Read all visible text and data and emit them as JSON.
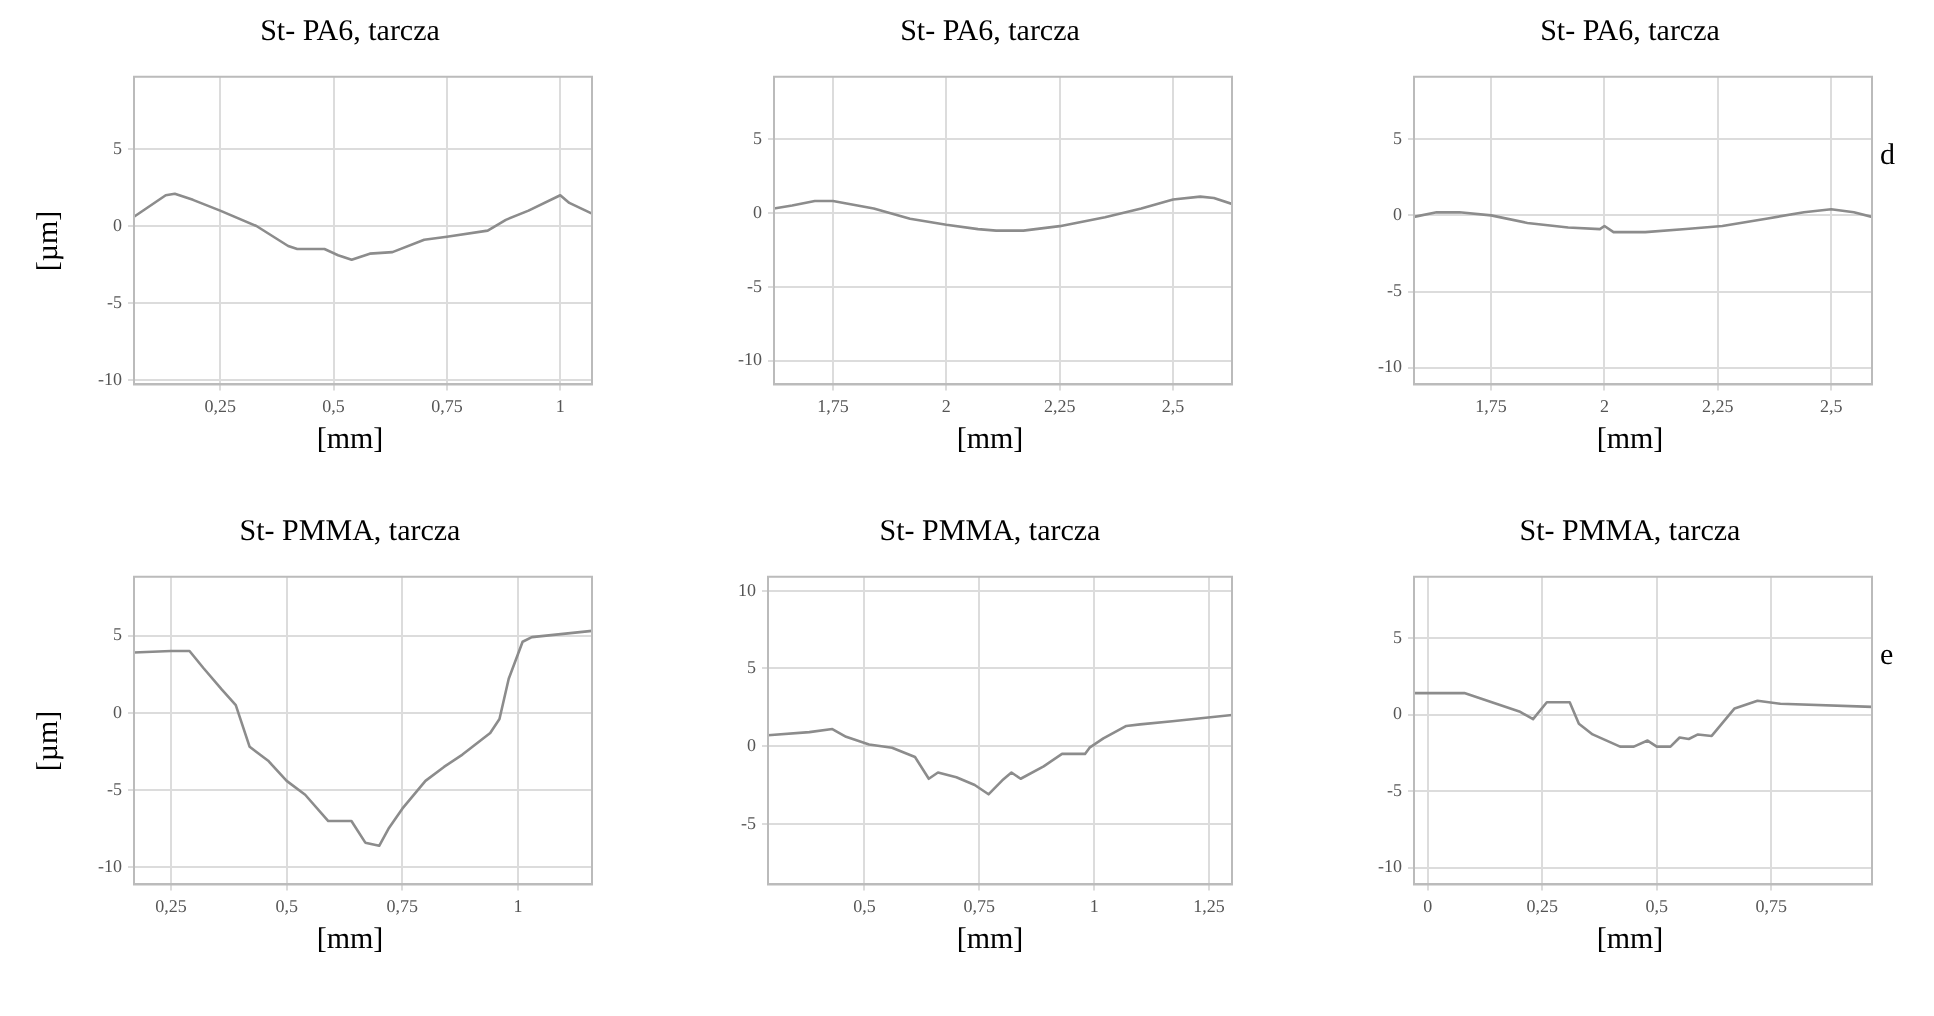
{
  "chart_data": [
    {
      "type": "line",
      "title": "St- PA6, tarcza",
      "xlabel": "[mm]",
      "ylabel": "[µm]",
      "grid": true,
      "legend": false,
      "marker": "none",
      "xlim": [
        0.06,
        1.07
      ],
      "xticks": [
        {
          "value": 0.25,
          "label": "0,25"
        },
        {
          "value": 0.5,
          "label": "0,5"
        },
        {
          "value": 0.75,
          "label": "0,75"
        },
        1
      ],
      "ylim": [
        -10.3,
        9.7
      ],
      "yticks": [
        -10,
        -5,
        0,
        5
      ],
      "series": [
        {
          "color": "#8c8c8c",
          "x": [
            0.06,
            0.13,
            0.15,
            0.19,
            0.25,
            0.33,
            0.4,
            0.42,
            0.48,
            0.51,
            0.54,
            0.58,
            0.63,
            0.7,
            0.75,
            0.84,
            0.88,
            0.93,
            1.0,
            1.02,
            1.07
          ],
          "values": [
            0.6,
            2.0,
            2.1,
            1.7,
            1.0,
            0,
            -1.3,
            -1.5,
            -1.5,
            -1.9,
            -2.2,
            -1.8,
            -1.7,
            -0.9,
            -0.7,
            -0.3,
            0.4,
            1.0,
            2.0,
            1.5,
            0.8
          ]
        }
      ]
    },
    {
      "type": "line",
      "title": "St- PA6, tarcza",
      "xlabel": "[mm]",
      "grid": true,
      "legend": false,
      "marker": "none",
      "xlim": [
        1.62,
        2.63
      ],
      "xticks": [
        {
          "value": 1.75,
          "label": "1,75"
        },
        2,
        {
          "value": 2.25,
          "label": "2,25"
        },
        {
          "value": 2.5,
          "label": "2,5"
        }
      ],
      "ylim": [
        -11.6,
        9.2
      ],
      "yticks": [
        -10,
        -5,
        0,
        5
      ],
      "series": [
        {
          "color": "#8c8c8c",
          "x": [
            1.62,
            1.66,
            1.71,
            1.75,
            1.84,
            1.92,
            2.0,
            2.07,
            2.11,
            2.17,
            2.25,
            2.35,
            2.43,
            2.5,
            2.56,
            2.59,
            2.63
          ],
          "values": [
            0.3,
            0.5,
            0.8,
            0.8,
            0.3,
            -0.4,
            -0.8,
            -1.1,
            -1.2,
            -1.2,
            -0.9,
            -0.3,
            0.3,
            0.9,
            1.1,
            1.0,
            0.6
          ]
        }
      ]
    },
    {
      "type": "line",
      "title": "St- PA6, tarcza",
      "xlabel": "[mm]",
      "annotations": [
        "d"
      ],
      "grid": true,
      "legend": false,
      "marker": "none",
      "xlim": [
        1.58,
        2.59
      ],
      "xticks": [
        {
          "value": 1.75,
          "label": "1,75"
        },
        2,
        {
          "value": 2.25,
          "label": "2,25"
        },
        {
          "value": 2.5,
          "label": "2,5"
        }
      ],
      "ylim": [
        -11.1,
        9.1
      ],
      "yticks": [
        -10,
        -5,
        0,
        5
      ],
      "series": [
        {
          "color": "#8c8c8c",
          "x": [
            1.58,
            1.63,
            1.68,
            1.75,
            1.83,
            1.92,
            1.99,
            2.0,
            2.02,
            2.09,
            2.18,
            2.26,
            2.36,
            2.44,
            2.5,
            2.55,
            2.59
          ],
          "values": [
            -0.1,
            0.2,
            0.2,
            0,
            -0.5,
            -0.8,
            -0.9,
            -0.7,
            -1.1,
            -1.1,
            -0.9,
            -0.7,
            -0.2,
            0.2,
            0.4,
            0.2,
            -0.1
          ]
        }
      ]
    },
    {
      "type": "line",
      "title": "St- PMMA, tarcza",
      "xlabel": "[mm]",
      "ylabel": "[µm]",
      "grid": true,
      "legend": false,
      "marker": "none",
      "xlim": [
        0.17,
        1.16
      ],
      "xticks": [
        {
          "value": 0.25,
          "label": "0,25"
        },
        {
          "value": 0.5,
          "label": "0,5"
        },
        {
          "value": 0.75,
          "label": "0,75"
        },
        1
      ],
      "ylim": [
        -11.1,
        8.8
      ],
      "yticks": [
        -10,
        -5,
        0,
        5
      ],
      "series": [
        {
          "color": "#8c8c8c",
          "x": [
            0.17,
            0.25,
            0.29,
            0.32,
            0.36,
            0.39,
            0.42,
            0.46,
            0.5,
            0.54,
            0.59,
            0.64,
            0.67,
            0.7,
            0.72,
            0.75,
            0.8,
            0.84,
            0.88,
            0.94,
            0.96,
            0.98,
            1.01,
            1.03,
            1.16
          ],
          "values": [
            3.9,
            4.0,
            4.0,
            2.9,
            1.5,
            0.5,
            -2.2,
            -3.1,
            -4.4,
            -5.3,
            -7.0,
            -7.0,
            -8.4,
            -8.6,
            -7.5,
            -6.2,
            -4.4,
            -3.5,
            -2.7,
            -1.3,
            -0.4,
            2.2,
            4.6,
            4.9,
            5.3
          ]
        }
      ]
    },
    {
      "type": "line",
      "title": "St- PMMA, tarcza",
      "xlabel": "[mm]",
      "grid": true,
      "legend": false,
      "marker": "none",
      "xlim": [
        0.29,
        1.3
      ],
      "xticks": [
        {
          "value": 0.5,
          "label": "0,5"
        },
        {
          "value": 0.75,
          "label": "0,75"
        },
        1,
        {
          "value": 1.25,
          "label": "1,25"
        }
      ],
      "ylim": [
        -8.9,
        10.9
      ],
      "yticks": [
        -5,
        0,
        5,
        10
      ],
      "series": [
        {
          "color": "#8c8c8c",
          "x": [
            0.29,
            0.38,
            0.43,
            0.46,
            0.51,
            0.56,
            0.61,
            0.64,
            0.66,
            0.7,
            0.74,
            0.77,
            0.8,
            0.82,
            0.84,
            0.89,
            0.93,
            0.98,
            0.99,
            1.02,
            1.07,
            1.1,
            1.17,
            1.3
          ],
          "values": [
            0.7,
            0.9,
            1.1,
            0.6,
            0.1,
            -0.1,
            -0.7,
            -2.1,
            -1.7,
            -2.0,
            -2.5,
            -3.1,
            -2.2,
            -1.7,
            -2.1,
            -1.3,
            -0.5,
            -0.5,
            -0.1,
            0.5,
            1.3,
            1.4,
            1.6,
            2.0
          ]
        }
      ]
    },
    {
      "type": "line",
      "title": "St- PMMA, tarcza",
      "xlabel": "[mm]",
      "annotations": [
        "e"
      ],
      "grid": true,
      "legend": false,
      "marker": "none",
      "xlim": [
        -0.03,
        0.97
      ],
      "xticks": [
        0,
        {
          "value": 0.25,
          "label": "0,25"
        },
        {
          "value": 0.5,
          "label": "0,5"
        },
        {
          "value": 0.75,
          "label": "0,75"
        }
      ],
      "ylim": [
        -11.1,
        9.0
      ],
      "yticks": [
        -10,
        -5,
        0,
        5
      ],
      "series": [
        {
          "color": "#8c8c8c",
          "x": [
            -0.03,
            0.08,
            0.14,
            0.2,
            0.23,
            0.26,
            0.31,
            0.33,
            0.36,
            0.42,
            0.45,
            0.48,
            0.5,
            0.53,
            0.55,
            0.57,
            0.59,
            0.62,
            0.67,
            0.72,
            0.77,
            0.97
          ],
          "values": [
            1.4,
            1.4,
            0.8,
            0.2,
            -0.3,
            0.8,
            0.8,
            -0.6,
            -1.3,
            -2.1,
            -2.1,
            -1.7,
            -2.1,
            -2.1,
            -1.5,
            -1.6,
            -1.3,
            -1.4,
            0.4,
            0.9,
            0.7,
            0.5
          ]
        }
      ]
    }
  ]
}
